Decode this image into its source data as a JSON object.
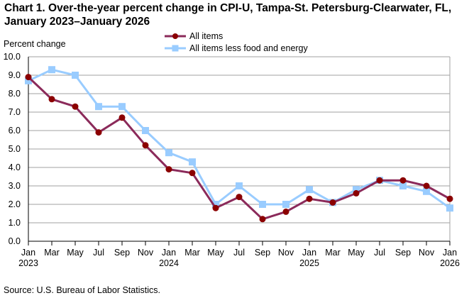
{
  "chart_data": {
    "type": "line",
    "title": "Chart 1. Over-the-year percent change in CPI-U, Tampa-St. Petersburg-Clearwater, FL, January 2023–January 2026",
    "ylabel": "Percent change",
    "xlabel": "",
    "ylim": [
      0,
      10
    ],
    "yticks": [
      "0.0",
      "1.0",
      "2.0",
      "3.0",
      "4.0",
      "5.0",
      "6.0",
      "7.0",
      "8.0",
      "9.0",
      "10.0"
    ],
    "grid": true,
    "legend_position": "top",
    "x": [
      "Jan 2023",
      "Mar 2023",
      "May 2023",
      "Jul 2023",
      "Sep 2023",
      "Nov 2023",
      "Jan 2024",
      "Mar 2024",
      "May 2024",
      "Jul 2024",
      "Sep 2024",
      "Nov 2024",
      "Jan 2025",
      "Mar 2025",
      "May 2025",
      "Jul 2025",
      "Sep 2025",
      "Nov 2025",
      "Jan 2026"
    ],
    "xtick_months": [
      "Jan",
      "Mar",
      "May",
      "Jul",
      "Sep",
      "Nov",
      "Jan",
      "Mar",
      "May",
      "Jul",
      "Sep",
      "Nov",
      "Jan",
      "Mar",
      "May",
      "Jul",
      "Sep",
      "Nov",
      "Jan"
    ],
    "xtick_years": {
      "0": "2023",
      "6": "2024",
      "12": "2025",
      "18": "2026"
    },
    "series": [
      {
        "name": "All items",
        "color": "#8b2a5a",
        "marker_color": "#8b0000",
        "marker": "circle",
        "values": [
          8.9,
          7.7,
          7.3,
          5.9,
          6.7,
          5.2,
          3.9,
          3.7,
          1.8,
          2.4,
          1.2,
          1.6,
          2.3,
          2.1,
          2.6,
          3.3,
          3.3,
          3.0,
          2.3
        ]
      },
      {
        "name": "All items less food and energy",
        "color": "#99ccff",
        "marker_color": "#99ccff",
        "marker": "square",
        "values": [
          8.7,
          9.3,
          9.0,
          7.3,
          7.3,
          6.0,
          4.8,
          4.3,
          2.0,
          3.0,
          2.0,
          2.0,
          2.8,
          2.1,
          2.8,
          3.3,
          3.0,
          2.7,
          1.8
        ]
      }
    ]
  },
  "source": "Source: U.S. Bureau of Labor Statistics."
}
